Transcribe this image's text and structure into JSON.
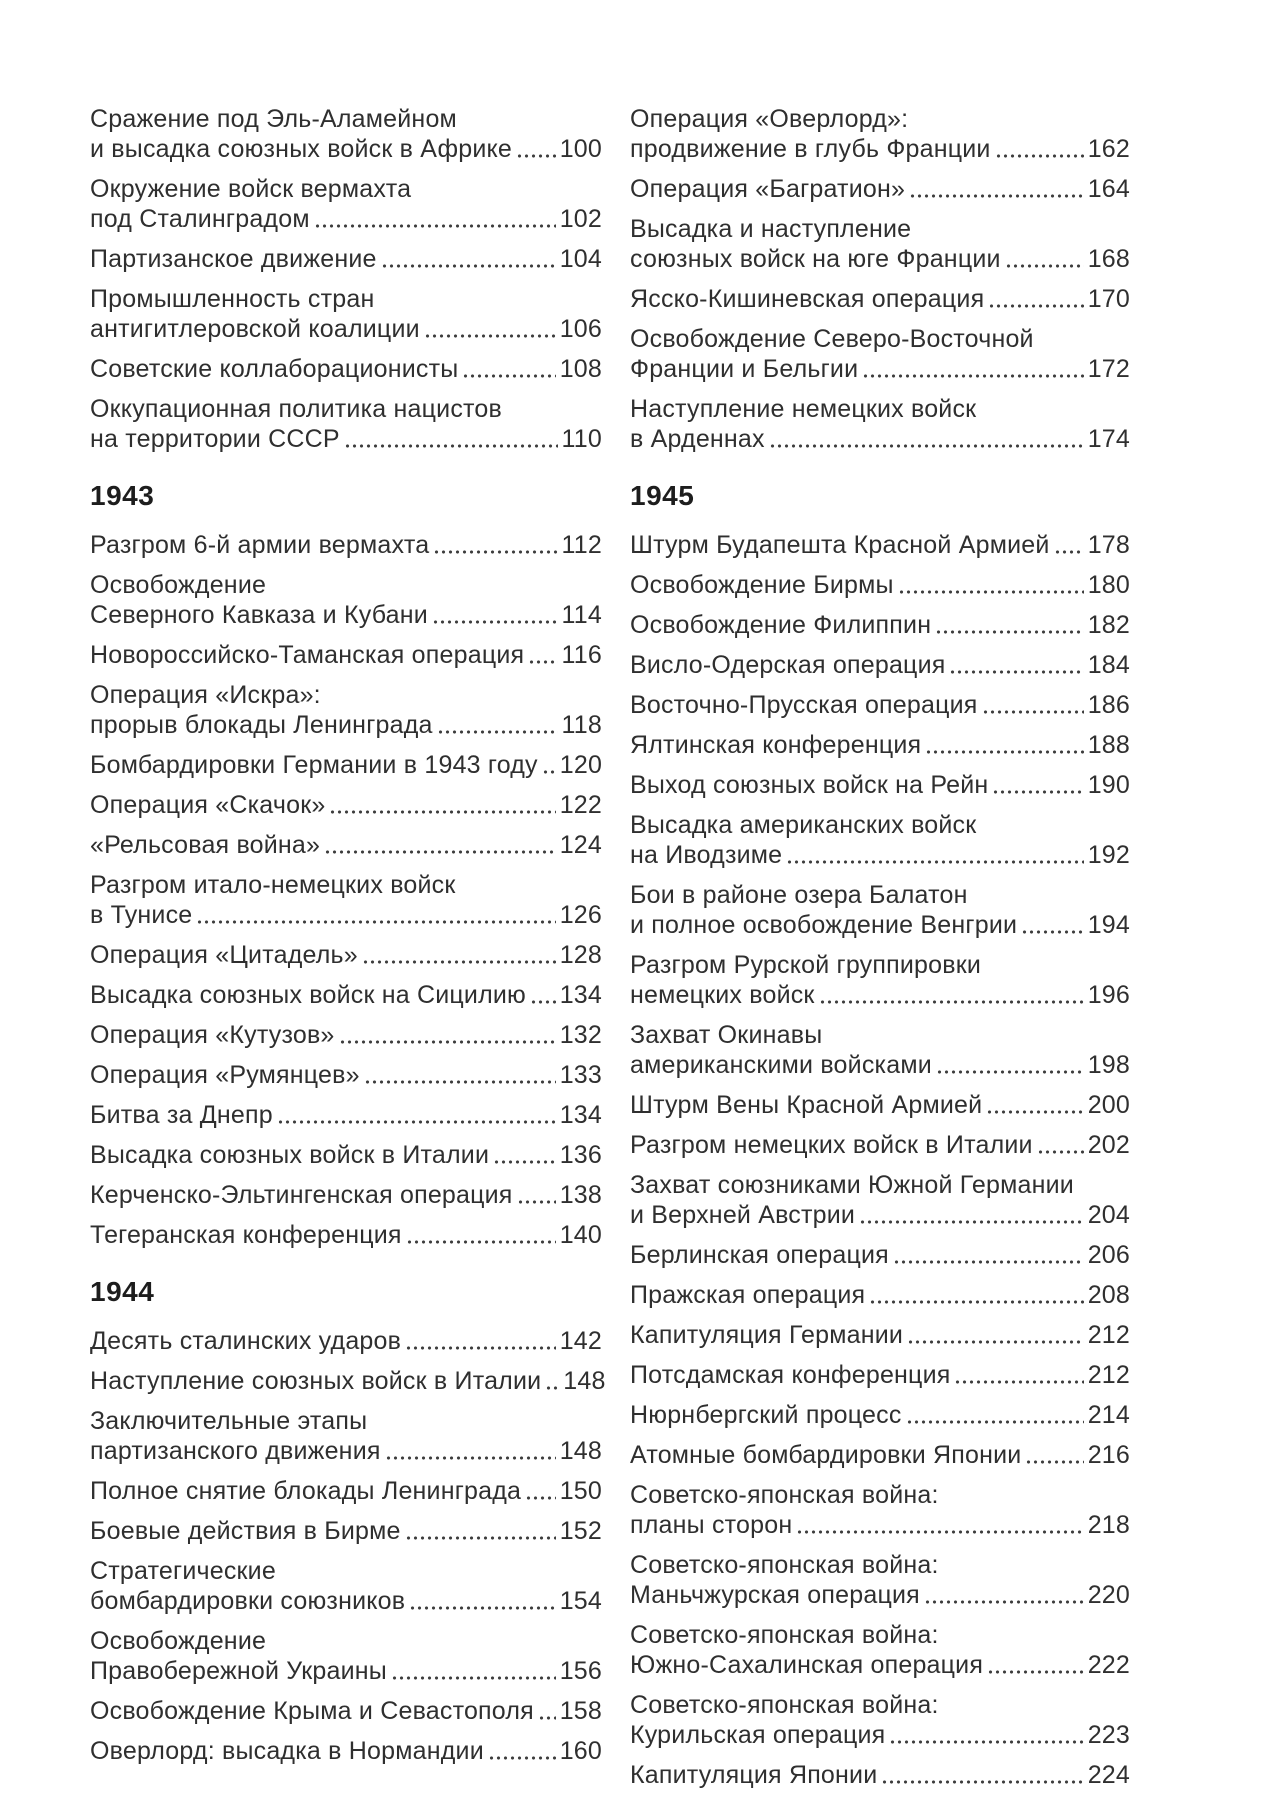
{
  "toc": {
    "colors": {
      "text": "#2f2f2f",
      "header": "#1d1d1d",
      "dots": "#3c3c3c",
      "background": "#ffffff"
    },
    "columns": [
      {
        "name": "left",
        "sections": [
          {
            "year": "",
            "entries": [
              {
                "lines": [
                  "Сражение под Эль-Аламейном",
                  "и высадка союзных войск в Африке"
                ],
                "page": "100"
              },
              {
                "lines": [
                  "Окружение войск вермахта",
                  "под Сталинградом"
                ],
                "page": "102"
              },
              {
                "lines": [
                  "Партизанское движение"
                ],
                "page": "104"
              },
              {
                "lines": [
                  "Промышленность стран",
                  "антигитлеровской коалиции"
                ],
                "page": "106"
              },
              {
                "lines": [
                  "Советские коллаборационисты"
                ],
                "page": "108"
              },
              {
                "lines": [
                  "Оккупационная политика нацистов",
                  "на территории СССР"
                ],
                "page": "110"
              }
            ]
          },
          {
            "year": "1943",
            "entries": [
              {
                "lines": [
                  "Разгром 6-й армии вермахта"
                ],
                "page": "112"
              },
              {
                "lines": [
                  "Освобождение",
                  "Северного Кавказа и Кубани"
                ],
                "page": "114"
              },
              {
                "lines": [
                  "Новороссийско-Таманская операция"
                ],
                "page": "116"
              },
              {
                "lines": [
                  "Операция «Искра»:",
                  "прорыв блокады Ленинграда"
                ],
                "page": "118"
              },
              {
                "lines": [
                  "Бомбардировки Германии в 1943 году"
                ],
                "page": "120"
              },
              {
                "lines": [
                  "Операция «Скачок»"
                ],
                "page": "122"
              },
              {
                "lines": [
                  "«Рельсовая война»"
                ],
                "page": "124"
              },
              {
                "lines": [
                  "Разгром итало-немецких войск",
                  "в Тунисе"
                ],
                "page": "126"
              },
              {
                "lines": [
                  "Операция «Цитадель»"
                ],
                "page": "128"
              },
              {
                "lines": [
                  "Высадка союзных войск на Сицилию"
                ],
                "page": "134"
              },
              {
                "lines": [
                  "Операция «Кутузов»"
                ],
                "page": "132"
              },
              {
                "lines": [
                  "Операция «Румянцев»"
                ],
                "page": "133"
              },
              {
                "lines": [
                  "Битва за Днепр"
                ],
                "page": "134"
              },
              {
                "lines": [
                  "Высадка союзных войск в Италии"
                ],
                "page": "136"
              },
              {
                "lines": [
                  "Керченско-Эльтингенская операция"
                ],
                "page": "138"
              },
              {
                "lines": [
                  "Тегеранская конференция"
                ],
                "page": "140"
              }
            ]
          },
          {
            "year": "1944",
            "entries": [
              {
                "lines": [
                  "Десять сталинских ударов"
                ],
                "page": "142"
              },
              {
                "lines": [
                  "Наступление союзных войск в Италии"
                ],
                "page": "148"
              },
              {
                "lines": [
                  "Заключительные этапы",
                  "партизанского движения"
                ],
                "page": "148"
              },
              {
                "lines": [
                  "Полное снятие блокады Ленинграда"
                ],
                "page": "150"
              },
              {
                "lines": [
                  "Боевые действия в Бирме"
                ],
                "page": "152"
              },
              {
                "lines": [
                  "Стратегические",
                  "бомбардировки союзников"
                ],
                "page": "154"
              },
              {
                "lines": [
                  "Освобождение",
                  "Правобережной Украины"
                ],
                "page": "156"
              },
              {
                "lines": [
                  "Освобождение Крыма и Севастополя"
                ],
                "page": "158"
              },
              {
                "lines": [
                  "Оверлорд: высадка в Нормандии"
                ],
                "page": "160"
              }
            ]
          }
        ]
      },
      {
        "name": "right",
        "sections": [
          {
            "year": "",
            "entries": [
              {
                "lines": [
                  "Операция «Оверлорд»:",
                  "продвижение в глубь Франции"
                ],
                "page": "162"
              },
              {
                "lines": [
                  "Операция «Багратион»"
                ],
                "page": "164"
              },
              {
                "lines": [
                  "Высадка и наступление",
                  "союзных войск на юге Франции"
                ],
                "page": "168"
              },
              {
                "lines": [
                  "Ясско-Кишиневская операция"
                ],
                "page": "170"
              },
              {
                "lines": [
                  "Освобождение Северо-Восточной",
                  "Франции и Бельгии"
                ],
                "page": "172"
              },
              {
                "lines": [
                  "Наступление немецких войск",
                  "в Арденнах"
                ],
                "page": "174"
              }
            ]
          },
          {
            "year": "1945",
            "entries": [
              {
                "lines": [
                  "Штурм Будапешта Красной Армией"
                ],
                "page": "178"
              },
              {
                "lines": [
                  "Освобождение Бирмы"
                ],
                "page": "180"
              },
              {
                "lines": [
                  "Освобождение Филиппин"
                ],
                "page": "182"
              },
              {
                "lines": [
                  "Висло-Одерская операция"
                ],
                "page": "184"
              },
              {
                "lines": [
                  "Восточно-Прусская операция"
                ],
                "page": "186"
              },
              {
                "lines": [
                  "Ялтинская конференция"
                ],
                "page": "188"
              },
              {
                "lines": [
                  "Выход союзных войск на Рейн"
                ],
                "page": "190"
              },
              {
                "lines": [
                  "Высадка американских войск",
                  "на Иводзиме"
                ],
                "page": "192"
              },
              {
                "lines": [
                  "Бои в районе озера Балатон",
                  "и полное освобождение Венгрии"
                ],
                "page": "194"
              },
              {
                "lines": [
                  "Разгром Рурской группировки",
                  "немецких войск"
                ],
                "page": "196"
              },
              {
                "lines": [
                  "Захват Окинавы",
                  "американскими войсками"
                ],
                "page": "198"
              },
              {
                "lines": [
                  "Штурм Вены Красной Армией"
                ],
                "page": "200"
              },
              {
                "lines": [
                  "Разгром немецких войск в Италии"
                ],
                "page": "202"
              },
              {
                "lines": [
                  "Захват союзниками Южной Германии",
                  "и Верхней Австрии"
                ],
                "page": "204"
              },
              {
                "lines": [
                  "Берлинская операция"
                ],
                "page": "206"
              },
              {
                "lines": [
                  "Пражская операция"
                ],
                "page": "208"
              },
              {
                "lines": [
                  "Капитуляция Германии"
                ],
                "page": "212"
              },
              {
                "lines": [
                  "Потсдамская конференция"
                ],
                "page": "212"
              },
              {
                "lines": [
                  "Нюрнбергский процесс"
                ],
                "page": "214"
              },
              {
                "lines": [
                  "Атомные бомбардировки Японии"
                ],
                "page": "216"
              },
              {
                "lines": [
                  "Советско-японская война:",
                  "планы сторон"
                ],
                "page": "218"
              },
              {
                "lines": [
                  "Советско-японская война:",
                  "Маньчжурская операция"
                ],
                "page": "220"
              },
              {
                "lines": [
                  "Советско-японская война:",
                  "Южно-Сахалинская операция"
                ],
                "page": "222"
              },
              {
                "lines": [
                  "Советско-японская война:",
                  "Курильская операция"
                ],
                "page": "223"
              },
              {
                "lines": [
                  "Капитуляция Японии"
                ],
                "page": "224"
              }
            ]
          }
        ]
      }
    ]
  }
}
